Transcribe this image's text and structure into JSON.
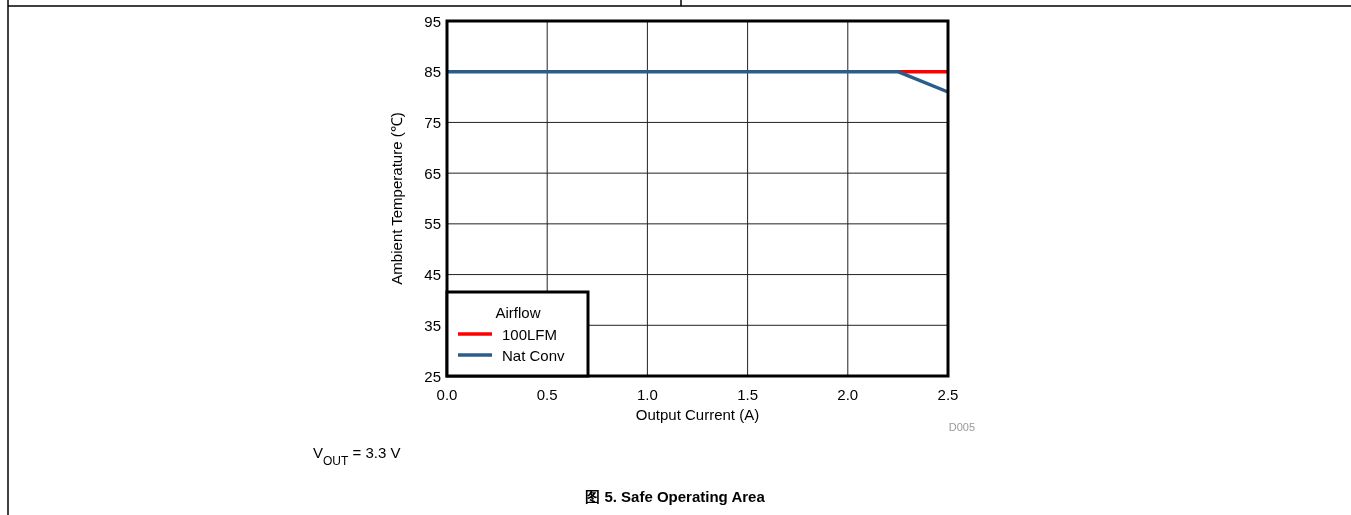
{
  "chart_data": {
    "type": "line",
    "title": "图 5. Safe Operating Area",
    "xlabel": "Output Current (A)",
    "ylabel": "Ambient Temperature (℃)",
    "legend_title": "Airflow",
    "annotations": [
      "V$_{OUT}$ = 3.3 V",
      "D005"
    ],
    "xlim": [
      0,
      2.5
    ],
    "xticks": [
      {
        "value": 0,
        "label": "0.0"
      },
      {
        "value": 0.5,
        "label": "0.5"
      },
      {
        "value": 1,
        "label": "1.0"
      },
      {
        "value": 1.5,
        "label": "1.5"
      },
      {
        "value": 2,
        "label": "2.0"
      },
      {
        "value": 2.5,
        "label": "2.5"
      }
    ],
    "ylim": [
      25,
      95
    ],
    "yticks": [
      25,
      35,
      45,
      55,
      65,
      75,
      85,
      95
    ],
    "grid": true,
    "legend": "bottom left",
    "marker": "none",
    "line_style": "solid",
    "series": [
      {
        "name": "100LFM",
        "color": "#ff0000",
        "x": [
          2.25,
          2.5
        ],
        "values": [
          85,
          85
        ]
      },
      {
        "name": "Nat Conv",
        "color": "#2a5d8a",
        "x": [
          0,
          2.25,
          2.5
        ],
        "values": [
          85,
          85,
          81
        ]
      }
    ]
  }
}
